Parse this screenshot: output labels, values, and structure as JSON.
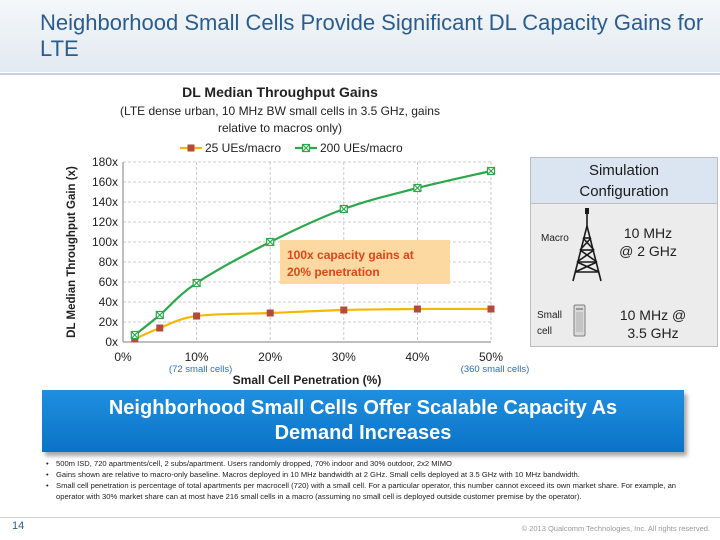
{
  "slide": {
    "title": "Neighborhood Small Cells Provide Significant DL  Capacity Gains for LTE",
    "number": "14",
    "copyright": "© 2013 Qualcomm Technologies,  Inc. All rights reserved."
  },
  "chart_data": {
    "type": "line",
    "title": "DL Median Throughput Gains",
    "subtitle_lines": [
      "(LTE dense urban, 10 MHz BW small cells in 3.5 GHz, gains",
      "relative to macros only)"
    ],
    "xlabel": "Small Cell Penetration (%)",
    "ylabel": "DL Median Throughput Gain (x)",
    "xlim": [
      0,
      50
    ],
    "ylim": [
      0,
      180
    ],
    "xticks": [
      "0%",
      "10%",
      "20%",
      "30%",
      "40%",
      "50%"
    ],
    "yticks": [
      "0x",
      "20x",
      "40x",
      "60x",
      "80x",
      "100x",
      "120x",
      "140x",
      "160x",
      "180x"
    ],
    "grid": true,
    "legend_position": "top",
    "x_notes": [
      {
        "x": 10,
        "text": "(72 small cells)"
      },
      {
        "x": 50,
        "text": "(360 small cells)"
      }
    ],
    "annotation": [
      "100x capacity gains at",
      "20% penetration"
    ],
    "series": [
      {
        "name": "25 UEs/macro",
        "color": "#f5b800",
        "marker_color": "#b44a3c",
        "marker": "square",
        "x": [
          1.6,
          5,
          10,
          20,
          30,
          40,
          50
        ],
        "y": [
          3,
          14,
          26,
          29,
          32,
          33,
          33
        ]
      },
      {
        "name": "200 UEs/macro",
        "color": "#2aa84a",
        "marker_color": "#2aa84a",
        "marker": "square-x",
        "x": [
          1.6,
          5,
          10,
          20,
          30,
          40,
          50
        ],
        "y": [
          7,
          27,
          59,
          100,
          133,
          154,
          171
        ]
      }
    ]
  },
  "sim_config": {
    "title_lines": [
      "Simulation",
      "Configuration"
    ],
    "macro_label": "Macro",
    "macro_config_lines": [
      "10 MHz",
      "@ 2 GHz"
    ],
    "small_label_lines": [
      "Small",
      "cell"
    ],
    "small_config_lines": [
      "10 MHz @",
      "3.5 GHz"
    ]
  },
  "banner": {
    "lines": [
      "Neighborhood Small Cells Offer Scalable Capacity As",
      "Demand Increases"
    ]
  },
  "bullets": [
    "500m ISD, 720 apartments/cell, 2 subs/apartment. Users randomly dropped, 70% indoor and 30% outdoor, 2x2 MIMO",
    "Gains shown are relative to macro-only baseline. Macros deployed in 10 MHz bandwidth at 2 GHz. Small cells deployed at 3.5 GHz with 10 MHz bandwidth.",
    "Small cell penetration is percentage of  total apartments per macrocell (720) with a small cell. For a particular operator, this number cannot exceed its own market share. For example, an operator with 30% market share can at most have 216 small cells in a macro (assuming no small cell is deployed outside customer premise by the operator)."
  ]
}
